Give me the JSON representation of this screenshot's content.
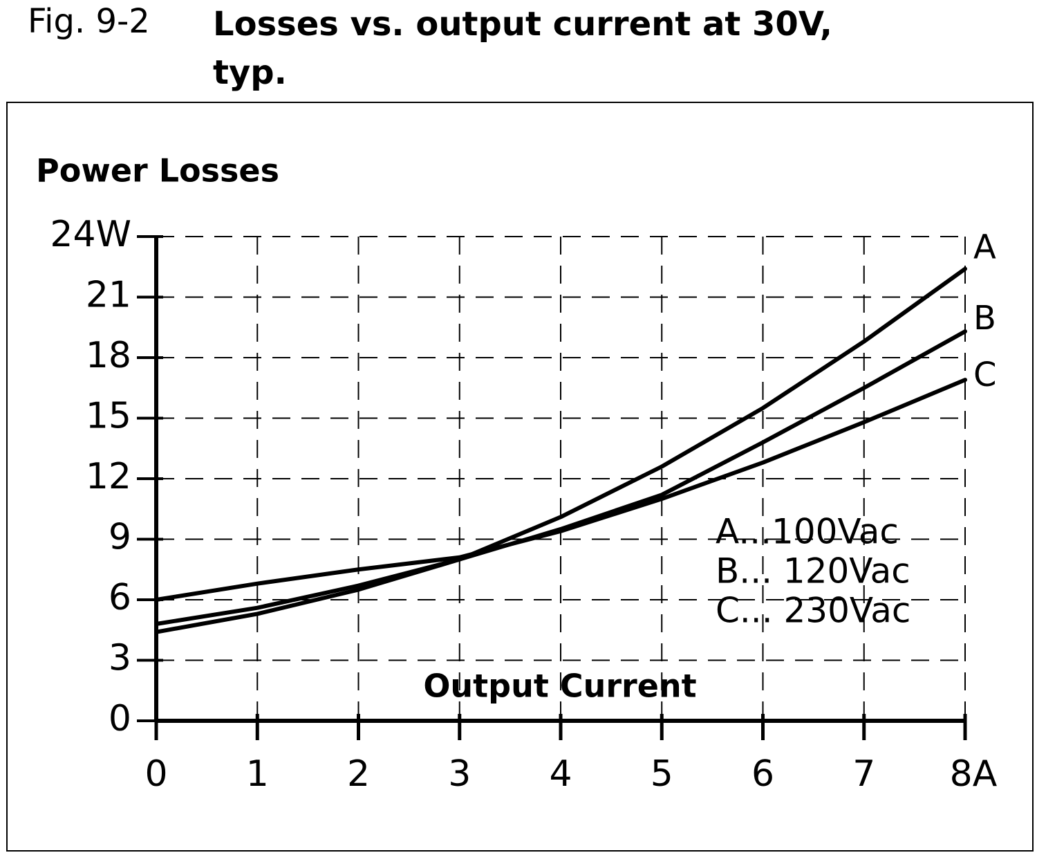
{
  "chart_data": {
    "type": "line",
    "figure_label": "Fig. 9-2",
    "title": "Losses vs. output current at 30V, typ.",
    "y_label": "Power Losses",
    "x_label": "Output Current",
    "x": [
      0,
      1,
      2,
      3,
      4,
      5,
      6,
      7,
      8
    ],
    "series": [
      {
        "name": "A",
        "label": "A...100Vac",
        "color": "#000000",
        "values": [
          4.4,
          5.3,
          6.5,
          8.0,
          10.1,
          12.6,
          15.5,
          18.8,
          22.4
        ]
      },
      {
        "name": "B",
        "label": "B... 120Vac",
        "color": "#000000",
        "values": [
          4.8,
          5.6,
          6.7,
          8.0,
          9.5,
          11.2,
          13.8,
          16.5,
          19.3
        ]
      },
      {
        "name": "C",
        "label": "C... 230Vac",
        "color": "#000000",
        "values": [
          6.0,
          6.8,
          7.5,
          8.1,
          9.4,
          11.0,
          12.8,
          14.8,
          16.9
        ]
      }
    ],
    "xlim": [
      0,
      8
    ],
    "xticks": [
      0,
      1,
      2,
      3,
      4,
      5,
      6,
      7,
      {
        "value": 8,
        "label": "8A"
      }
    ],
    "ylim": [
      0,
      24
    ],
    "yticks": [
      0,
      3,
      6,
      9,
      12,
      15,
      18,
      21,
      {
        "value": 24,
        "label": "24W"
      }
    ],
    "grid": true
  }
}
